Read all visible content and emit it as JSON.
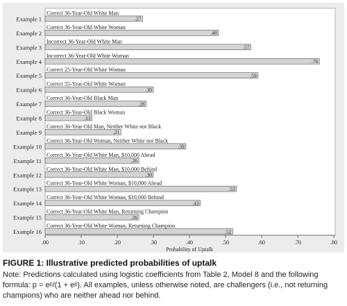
{
  "chart_data": {
    "type": "bar",
    "orientation": "horizontal",
    "categories": [
      "Example 1",
      "Example 2",
      "Example 3",
      "Example 4",
      "Example 5",
      "Example 6",
      "Example 7",
      "Example 8",
      "Example 9",
      "Example 10",
      "Example 11",
      "Example 12",
      "Example 13",
      "Example 14",
      "Example 15",
      "Example 16"
    ],
    "bar_labels": [
      "Correct 36-Year-Old White Man",
      "Correct 36-Year-Old White Woman",
      "Incorrect 36-Year-Old White Man",
      "Incorrect 36-Year-Old White Woman",
      "Correct 25-Year-Old White Woman",
      "Correct 55-Year-Old White Woman",
      "Correct 36-Year-Old Black Man",
      "Correct 36-Year-Old Black Woman",
      "Correct 36-Year-Old Man, Neither White nor Black",
      "Correct 36-Year-Old Woman, Neither White nor Black",
      "Correct 36-Year-Old White Man, $10,000 Ahead",
      "Correct 36-Year-Old White Man, $10,000 Behind",
      "Correct 36-Year-Old White Woman, $10,000 Ahead",
      "Correct 36-Year-Old White Woman, $10,000 Behind",
      "Correct 36-Year-Old White Man, Returning  Champion",
      "Correct 36-Year-Old White Woman, Returning  Champion"
    ],
    "values": [
      0.27,
      0.48,
      0.57,
      0.76,
      0.59,
      0.3,
      0.28,
      0.13,
      0.21,
      0.39,
      0.26,
      0.3,
      0.53,
      0.43,
      0.26,
      0.52
    ],
    "value_labels": [
      ".27",
      ".48",
      ".57",
      ".76",
      ".59",
      ".30",
      ".28",
      ".13",
      ".21",
      ".39",
      ".26",
      ".30",
      ".53",
      ".43",
      ".26",
      ".52"
    ],
    "xlabel": "Probability of Uptalk",
    "xlim": [
      0,
      0.8
    ],
    "x_ticks": [
      0,
      0.1,
      0.2,
      0.3,
      0.4,
      0.5,
      0.6,
      0.7,
      0.8
    ],
    "x_tick_labels": [
      ".00",
      ".10",
      ".20",
      ".30",
      ".40",
      ".50",
      ".60",
      ".70",
      ".80"
    ],
    "grid": false,
    "bar_color": "#d4d4d4",
    "bar_edge_color": "#555555",
    "panel_color": "#ececec"
  },
  "caption": {
    "title": "FIGURE 1: Illustrative predicted probabilities of uptalk",
    "note": "Note: Predictions calculated using logistic coefficients from Table 2, Model 8 and the following formula: p = eᵖ/(1 + eᵖ). All examples, unless otherwise noted, are challengers (i.e., not returning champions) who are neither ahead nor behind."
  }
}
